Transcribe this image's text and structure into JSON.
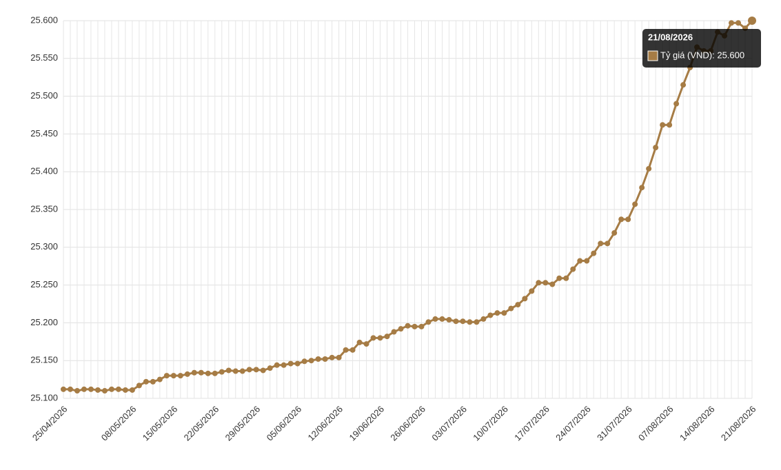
{
  "chart_data": {
    "type": "line",
    "categories": [
      "25/04/2026",
      null,
      null,
      null,
      null,
      null,
      null,
      null,
      null,
      null,
      "08/05/2026",
      null,
      null,
      null,
      null,
      null,
      "15/05/2026",
      null,
      null,
      null,
      null,
      null,
      "22/05/2026",
      null,
      null,
      null,
      null,
      null,
      "29/05/2026",
      null,
      null,
      null,
      null,
      null,
      "05/06/2026",
      null,
      null,
      null,
      null,
      null,
      "12/06/2026",
      null,
      null,
      null,
      null,
      null,
      "19/06/2026",
      null,
      null,
      null,
      null,
      null,
      "26/06/2026",
      null,
      null,
      null,
      null,
      null,
      "03/07/2026",
      null,
      null,
      null,
      null,
      null,
      "10/07/2026",
      null,
      null,
      null,
      null,
      null,
      "17/07/2026",
      null,
      null,
      null,
      null,
      null,
      "24/07/2026",
      null,
      null,
      null,
      null,
      null,
      "31/07/2026",
      null,
      null,
      null,
      null,
      null,
      "07/08/2026",
      null,
      null,
      null,
      null,
      null,
      "14/08/2026",
      null,
      null,
      null,
      null,
      null,
      "21/08/2026"
    ],
    "series": [
      {
        "name": "Tỷ giá (VND)",
        "color": "#a67c45",
        "values": [
          25112,
          25112,
          25110,
          25112,
          25112,
          25111,
          25110,
          25112,
          25112,
          25111,
          25111,
          25117,
          25122,
          25122,
          25125,
          25130,
          25130,
          25130,
          25132,
          25134,
          25134,
          25133,
          25133,
          25135,
          25137,
          25136,
          25136,
          25138,
          25138,
          25137,
          25140,
          25144,
          25144,
          25146,
          25146,
          25149,
          25150,
          25152,
          25152,
          25154,
          25154,
          25164,
          25164,
          25174,
          25172,
          25180,
          25180,
          25182,
          25188,
          25192,
          25196,
          25195,
          25195,
          25201,
          25205,
          25205,
          25204,
          25202,
          25202,
          25201,
          25201,
          25205,
          25210,
          25213,
          25213,
          25219,
          25224,
          25232,
          25242,
          25253,
          25253,
          25251,
          25259,
          25259,
          25271,
          25282,
          25282,
          25292,
          25305,
          25305,
          25319,
          25337,
          25337,
          25357,
          25379,
          25404,
          25432,
          25462,
          25462,
          25490,
          25515,
          25538,
          25565,
          25560,
          25560,
          25585,
          25580,
          25597,
          25597,
          25590,
          25600
        ]
      }
    ],
    "ylim": [
      25100,
      25600
    ],
    "yticks": [
      {
        "value": 25100,
        "label": "25.100"
      },
      {
        "value": 25150,
        "label": "25.150"
      },
      {
        "value": 25200,
        "label": "25.200"
      },
      {
        "value": 25250,
        "label": "25.250"
      },
      {
        "value": 25300,
        "label": "25.300"
      },
      {
        "value": 25350,
        "label": "25.350"
      },
      {
        "value": 25400,
        "label": "25.400"
      },
      {
        "value": 25450,
        "label": "25.450"
      },
      {
        "value": 25500,
        "label": "25.500"
      },
      {
        "value": 25550,
        "label": "25.550"
      },
      {
        "value": 25600,
        "label": "25.600"
      }
    ],
    "grid": true,
    "tooltip": {
      "title": "21/08/2026",
      "text": "Tỷ giá (VND): 25.600"
    }
  }
}
